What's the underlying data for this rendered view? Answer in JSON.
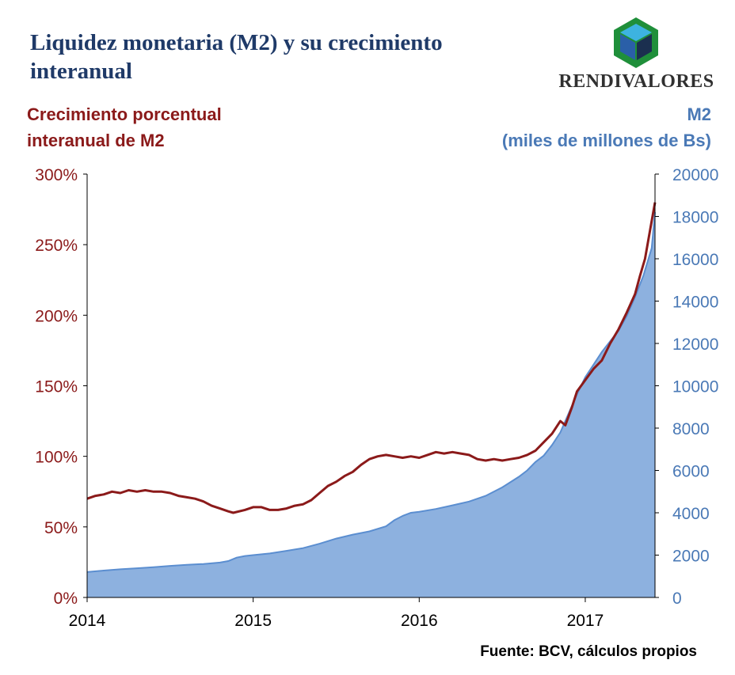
{
  "header": {
    "title": "Liquidez monetaria (M2) y su crecimiento interanual",
    "logo_text": "RENDIVALORES",
    "logo_icon": "cube-icon"
  },
  "left_axis_title_line1": "Crecimiento porcentual",
  "left_axis_title_line2": "interanual de M2",
  "right_axis_title_line1": "M2",
  "right_axis_title_line2": "(miles de millones de Bs)",
  "source": "Fuente: BCV, cálculos propios",
  "colors": {
    "growth_line": "#8b1a1a",
    "m2_area_fill": "#8db1df",
    "m2_area_edge": "#5b8ed0",
    "left_axis": "#8b1a1a",
    "right_axis": "#4a79b6",
    "title": "#1f3a68"
  },
  "chart_data": {
    "type": "area+line",
    "title": "Liquidez monetaria (M2) y su crecimiento interanual",
    "xlabel": "",
    "x_ticks": [
      "2014",
      "2015",
      "2016",
      "2017"
    ],
    "x_range": [
      2014.0,
      2017.42
    ],
    "y_left": {
      "label": "Crecimiento porcentual interanual de M2",
      "range": [
        0,
        300
      ],
      "ticks": [
        "0%",
        "50%",
        "100%",
        "150%",
        "200%",
        "250%",
        "300%"
      ]
    },
    "y_right": {
      "label": "M2 (miles de millones de Bs)",
      "range": [
        0,
        20000
      ],
      "ticks": [
        "0",
        "2000",
        "4000",
        "6000",
        "8000",
        "10000",
        "12000",
        "14000",
        "16000",
        "18000",
        "20000"
      ]
    },
    "grid": false,
    "series": [
      {
        "type": "line",
        "axis": "left",
        "points": [
          [
            2014.0,
            70
          ],
          [
            2014.05,
            72
          ],
          [
            2014.1,
            73
          ],
          [
            2014.15,
            75
          ],
          [
            2014.2,
            74
          ],
          [
            2014.25,
            76
          ],
          [
            2014.3,
            75
          ],
          [
            2014.35,
            76
          ],
          [
            2014.4,
            75
          ],
          [
            2014.45,
            75
          ],
          [
            2014.5,
            74
          ],
          [
            2014.55,
            72
          ],
          [
            2014.6,
            71
          ],
          [
            2014.65,
            70
          ],
          [
            2014.7,
            68
          ],
          [
            2014.75,
            65
          ],
          [
            2014.8,
            63
          ],
          [
            2014.85,
            61
          ],
          [
            2014.88,
            60
          ],
          [
            2014.95,
            62
          ],
          [
            2015.0,
            64
          ],
          [
            2015.05,
            64
          ],
          [
            2015.1,
            62
          ],
          [
            2015.15,
            62
          ],
          [
            2015.2,
            63
          ],
          [
            2015.25,
            65
          ],
          [
            2015.3,
            66
          ],
          [
            2015.35,
            69
          ],
          [
            2015.4,
            74
          ],
          [
            2015.45,
            79
          ],
          [
            2015.5,
            82
          ],
          [
            2015.55,
            86
          ],
          [
            2015.6,
            89
          ],
          [
            2015.65,
            94
          ],
          [
            2015.7,
            98
          ],
          [
            2015.75,
            100
          ],
          [
            2015.8,
            101
          ],
          [
            2015.85,
            100
          ],
          [
            2015.9,
            99
          ],
          [
            2015.95,
            100
          ],
          [
            2016.0,
            99
          ],
          [
            2016.05,
            101
          ],
          [
            2016.1,
            103
          ],
          [
            2016.15,
            102
          ],
          [
            2016.2,
            103
          ],
          [
            2016.25,
            102
          ],
          [
            2016.3,
            101
          ],
          [
            2016.35,
            98
          ],
          [
            2016.4,
            97
          ],
          [
            2016.45,
            98
          ],
          [
            2016.5,
            97
          ],
          [
            2016.55,
            98
          ],
          [
            2016.6,
            99
          ],
          [
            2016.65,
            101
          ],
          [
            2016.7,
            104
          ],
          [
            2016.75,
            110
          ],
          [
            2016.8,
            116
          ],
          [
            2016.85,
            125
          ],
          [
            2016.88,
            122
          ],
          [
            2016.92,
            135
          ],
          [
            2016.95,
            146
          ],
          [
            2017.0,
            154
          ],
          [
            2017.05,
            162
          ],
          [
            2017.1,
            168
          ],
          [
            2017.15,
            180
          ],
          [
            2017.2,
            190
          ],
          [
            2017.25,
            202
          ],
          [
            2017.3,
            215
          ],
          [
            2017.33,
            228
          ],
          [
            2017.36,
            240
          ],
          [
            2017.39,
            260
          ],
          [
            2017.42,
            280
          ]
        ]
      },
      {
        "type": "area",
        "axis": "right",
        "points": [
          [
            2014.0,
            1200
          ],
          [
            2014.1,
            1270
          ],
          [
            2014.2,
            1330
          ],
          [
            2014.3,
            1380
          ],
          [
            2014.4,
            1430
          ],
          [
            2014.5,
            1490
          ],
          [
            2014.6,
            1540
          ],
          [
            2014.7,
            1580
          ],
          [
            2014.8,
            1650
          ],
          [
            2014.85,
            1720
          ],
          [
            2014.9,
            1880
          ],
          [
            2014.95,
            1960
          ],
          [
            2015.0,
            2000
          ],
          [
            2015.1,
            2080
          ],
          [
            2015.2,
            2200
          ],
          [
            2015.3,
            2330
          ],
          [
            2015.4,
            2540
          ],
          [
            2015.5,
            2780
          ],
          [
            2015.6,
            2970
          ],
          [
            2015.7,
            3120
          ],
          [
            2015.8,
            3360
          ],
          [
            2015.85,
            3650
          ],
          [
            2015.9,
            3850
          ],
          [
            2015.95,
            4000
          ],
          [
            2016.0,
            4050
          ],
          [
            2016.1,
            4180
          ],
          [
            2016.2,
            4350
          ],
          [
            2016.3,
            4530
          ],
          [
            2016.4,
            4800
          ],
          [
            2016.5,
            5200
          ],
          [
            2016.6,
            5700
          ],
          [
            2016.65,
            6000
          ],
          [
            2016.7,
            6400
          ],
          [
            2016.75,
            6700
          ],
          [
            2016.8,
            7200
          ],
          [
            2016.85,
            7800
          ],
          [
            2016.9,
            8700
          ],
          [
            2016.95,
            9600
          ],
          [
            2017.0,
            10400
          ],
          [
            2017.05,
            11000
          ],
          [
            2017.1,
            11600
          ],
          [
            2017.15,
            12100
          ],
          [
            2017.2,
            12600
          ],
          [
            2017.25,
            13300
          ],
          [
            2017.3,
            14200
          ],
          [
            2017.35,
            15200
          ],
          [
            2017.4,
            16500
          ],
          [
            2017.42,
            18200
          ]
        ]
      }
    ]
  }
}
